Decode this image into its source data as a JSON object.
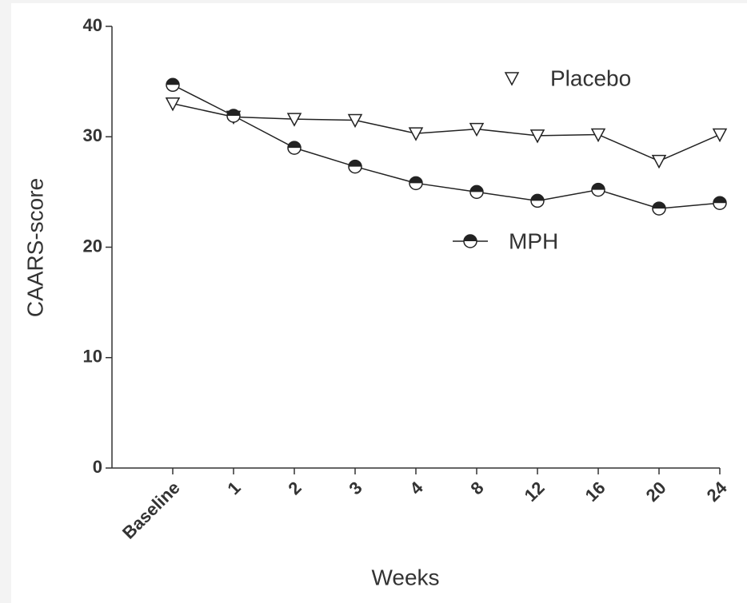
{
  "chart_data": {
    "type": "line",
    "x_label": "Weeks",
    "y_label": "CAARS-score",
    "categories": [
      "Baseline",
      "1",
      "2",
      "3",
      "4",
      "8",
      "12",
      "16",
      "20",
      "24"
    ],
    "series": [
      {
        "name": "Placebo",
        "color": "#222222",
        "marker": "triangle-down",
        "values": [
          33.0,
          31.8,
          31.6,
          31.5,
          30.3,
          30.7,
          30.1,
          30.2,
          27.8,
          30.2
        ]
      },
      {
        "name": "MPH",
        "color": "#222222",
        "marker": "half-circle",
        "values": [
          34.7,
          31.9,
          29.0,
          27.3,
          25.8,
          25.0,
          24.2,
          25.2,
          23.5,
          24.0
        ]
      }
    ],
    "ylim": [
      0,
      40
    ],
    "yticks": [
      0,
      10,
      20,
      30,
      40
    ],
    "grid": false
  }
}
